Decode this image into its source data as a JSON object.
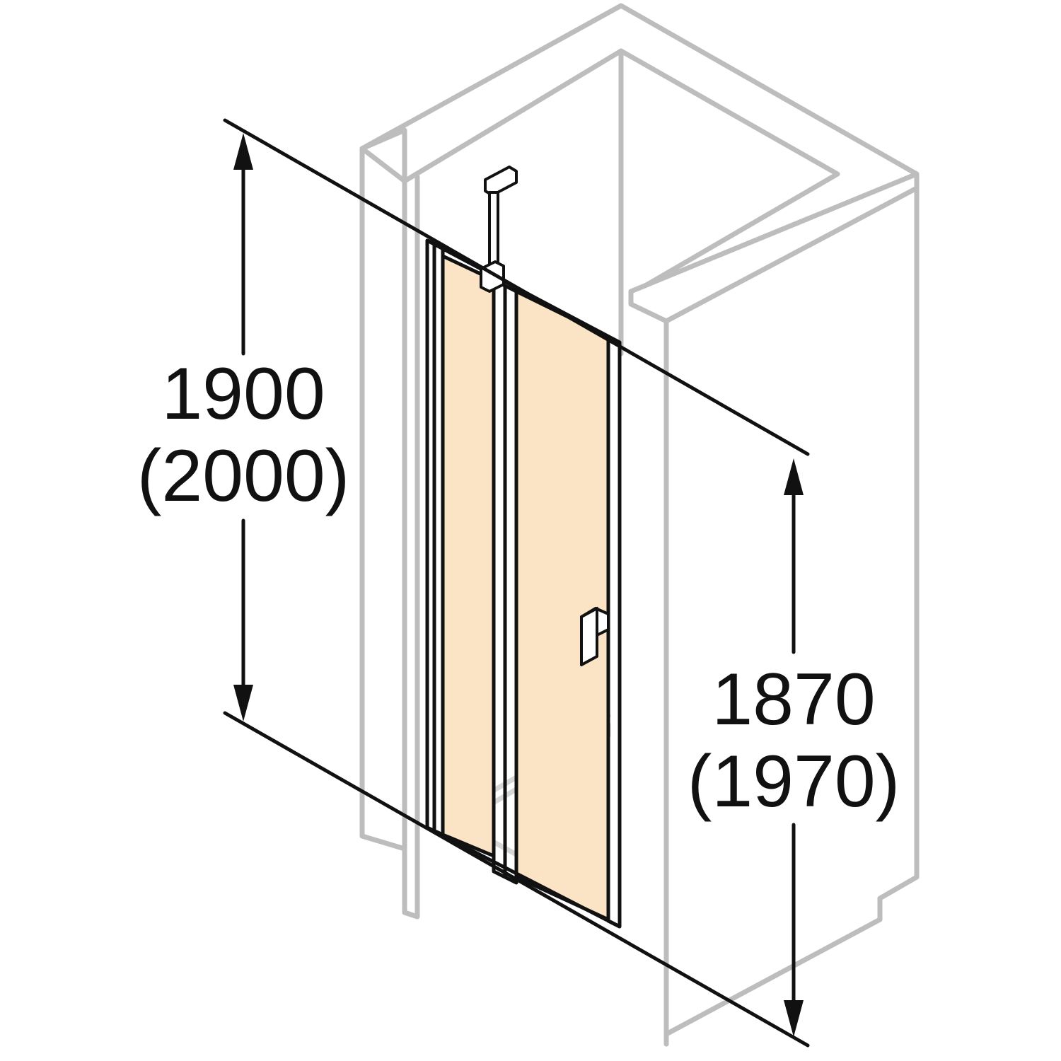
{
  "diagram": {
    "panel_glass_color": "#fbe3c6",
    "line_color": "#111111",
    "wall_color": "#bdbdbd",
    "dimensions": {
      "left_height": {
        "line1": "1900",
        "line2": "(2000)"
      },
      "right_height": {
        "line1": "1870",
        "line2": "(1970)"
      }
    }
  }
}
